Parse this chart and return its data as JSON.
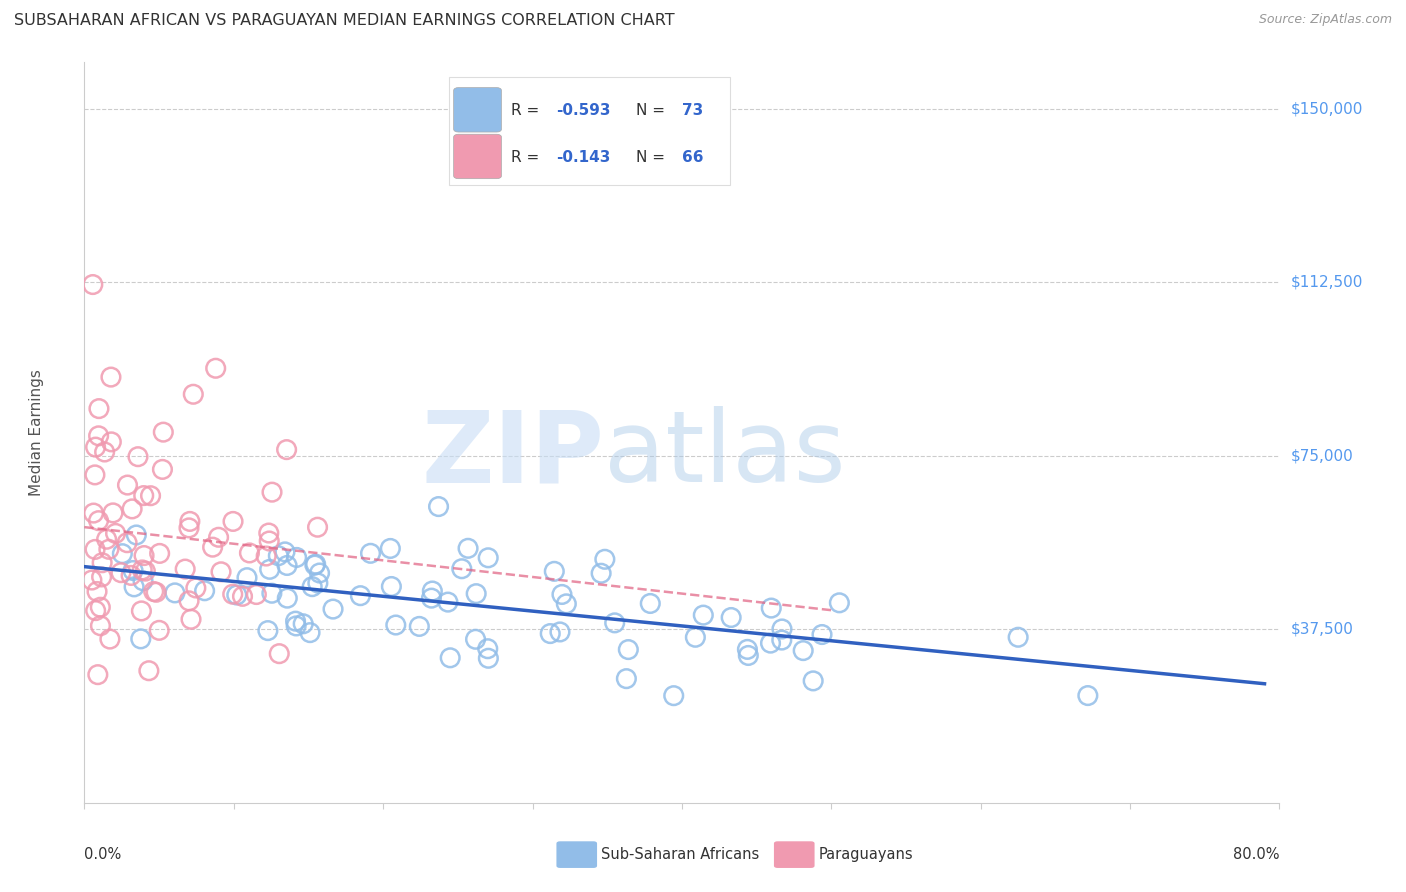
{
  "title": "SUBSAHARAN AFRICAN VS PARAGUAYAN MEDIAN EARNINGS CORRELATION CHART",
  "source": "Source: ZipAtlas.com",
  "ylabel": "Median Earnings",
  "xlim": [
    0.0,
    0.8
  ],
  "ylim": [
    0,
    160000
  ],
  "ytick_vals": [
    37500,
    75000,
    112500,
    150000
  ],
  "ytick_labels": [
    "$37,500",
    "$75,000",
    "$112,500",
    "$150,000"
  ],
  "color_blue": "#92bde8",
  "color_pink": "#f09ab0",
  "color_blue_line": "#3060c0",
  "color_pink_line": "#e06080",
  "label_blue": "Sub-Saharan Africans",
  "label_pink": "Paraguayans",
  "blue_r": "-0.593",
  "blue_n": "73",
  "pink_r": "-0.143",
  "pink_n": "66",
  "watermark_zip": "ZIP",
  "watermark_atlas": "atlas",
  "grid_color": "#cccccc",
  "spine_color": "#cccccc",
  "axis_label_color": "#888888",
  "ytick_color": "#5599ee",
  "title_color": "#333333",
  "source_color": "#999999",
  "legend_r_color": "#222222",
  "legend_n_color": "#3366cc"
}
